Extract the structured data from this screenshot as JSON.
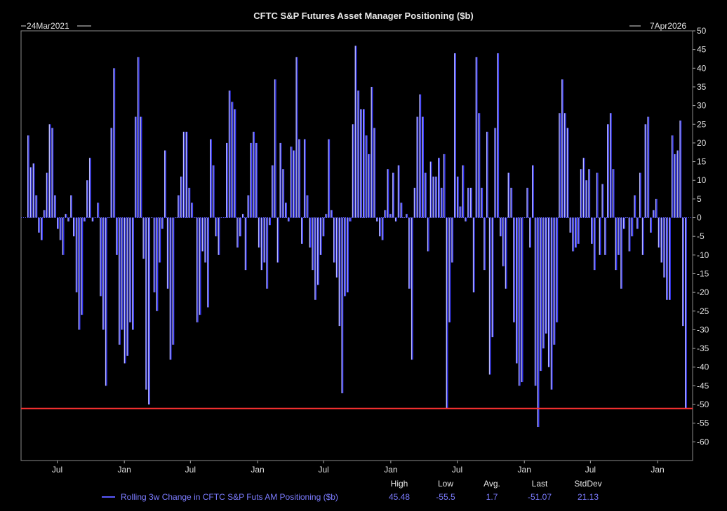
{
  "chart_data": {
    "type": "bar",
    "title": "CFTC S&P Futures Asset Manager Positioning ($b)",
    "start_label": "24Mar2021",
    "end_label": "7Apr2026",
    "x_ticks": [
      {
        "label": "Jul",
        "date": "2021-07-01"
      },
      {
        "label": "Jan",
        "date": "2022-01-01"
      },
      {
        "label": "Jul",
        "date": "2022-07-01"
      },
      {
        "label": "Jan",
        "date": "2023-01-01"
      },
      {
        "label": "Jul",
        "date": "2023-07-01"
      },
      {
        "label": "Jan",
        "date": "2024-01-01"
      },
      {
        "label": "Jul",
        "date": "2024-07-01"
      },
      {
        "label": "Jan",
        "date": "2025-01-01"
      },
      {
        "label": "Jul",
        "date": "2025-07-01"
      },
      {
        "label": "Jan",
        "date": "2026-01-01"
      }
    ],
    "x_range": [
      "2021-03-24",
      "2026-04-07"
    ],
    "ylim": [
      -65,
      50
    ],
    "y_ticks": [
      50,
      45,
      40,
      35,
      30,
      25,
      20,
      15,
      10,
      5,
      0,
      -5,
      -10,
      -15,
      -20,
      -25,
      -30,
      -35,
      -40,
      -45,
      -50,
      -55,
      -60
    ],
    "reference_line": {
      "value": -51.07,
      "color": "#ff3333"
    },
    "series": [
      {
        "name": "Rolling 3w Change in CFTC S&P Futs AM Positioning ($b)",
        "color": "#3a3aff",
        "values": [
          22,
          13.5,
          14.5,
          6,
          -4,
          -6,
          2,
          12,
          25,
          24,
          6,
          -3,
          -6,
          -10,
          1,
          -1,
          6,
          -5,
          -20,
          -30,
          -26,
          -1,
          10,
          16,
          -1,
          0,
          4,
          -21,
          -30,
          -45,
          0,
          24,
          40,
          -10,
          -34,
          -30,
          -39,
          -37,
          -28,
          -30,
          27,
          43,
          27,
          -11,
          -46,
          -50,
          0,
          -20,
          -25,
          -12,
          -3,
          18,
          -19,
          -38,
          -34,
          0,
          6,
          11,
          23,
          23,
          8,
          4,
          0,
          -28,
          -26,
          -9,
          -12,
          -24,
          21,
          14,
          -5,
          -10,
          0,
          0,
          20,
          34,
          31,
          29,
          -8,
          -5,
          1,
          -14,
          6,
          20,
          23,
          20,
          -8,
          -14,
          -12,
          -19,
          -2,
          14,
          37,
          -12,
          20,
          13,
          4,
          -1,
          19,
          18,
          43,
          21,
          -7,
          21,
          6,
          -8,
          -14,
          -22,
          -18,
          -10,
          -5,
          1,
          21,
          2,
          -12,
          -16,
          -29,
          -47,
          -21,
          -20,
          -1,
          25,
          46,
          34,
          29,
          29,
          22,
          17,
          35,
          24,
          -1,
          -5,
          -6,
          2,
          13,
          1,
          12,
          -1,
          14,
          4,
          0,
          1,
          -19,
          -38,
          8,
          27,
          33,
          27,
          12,
          -9,
          15,
          11,
          11,
          16,
          8,
          17,
          -51,
          -28,
          -12,
          44,
          11,
          3,
          14,
          -1,
          8,
          8,
          -20,
          43,
          28,
          8,
          -14,
          23,
          -42,
          -32,
          24,
          44,
          -5,
          -13,
          -19,
          12,
          8,
          -28,
          -39,
          -45,
          -44,
          0,
          8,
          -8,
          14,
          -45,
          -56,
          -41,
          -35,
          -31,
          -40,
          -46,
          -34,
          -28,
          28,
          37,
          28,
          24,
          -4,
          -9,
          -8,
          -7,
          13,
          16,
          10,
          13,
          -7,
          -14,
          12,
          -10,
          9,
          -10,
          25,
          28,
          13,
          -14,
          -10,
          -19,
          -3,
          0,
          -9,
          -5,
          6,
          -3,
          12,
          -10,
          25,
          27,
          -4,
          2,
          5,
          -8,
          -12,
          -16,
          -22,
          -22,
          22,
          17,
          18,
          26,
          -29,
          -51.07
        ]
      }
    ],
    "stats": {
      "headers": [
        "High",
        "Low",
        "Avg.",
        "Last",
        "StdDev"
      ],
      "values": [
        "45.48",
        "-55.5",
        "1.7",
        "-51.07",
        "21.13"
      ]
    }
  }
}
